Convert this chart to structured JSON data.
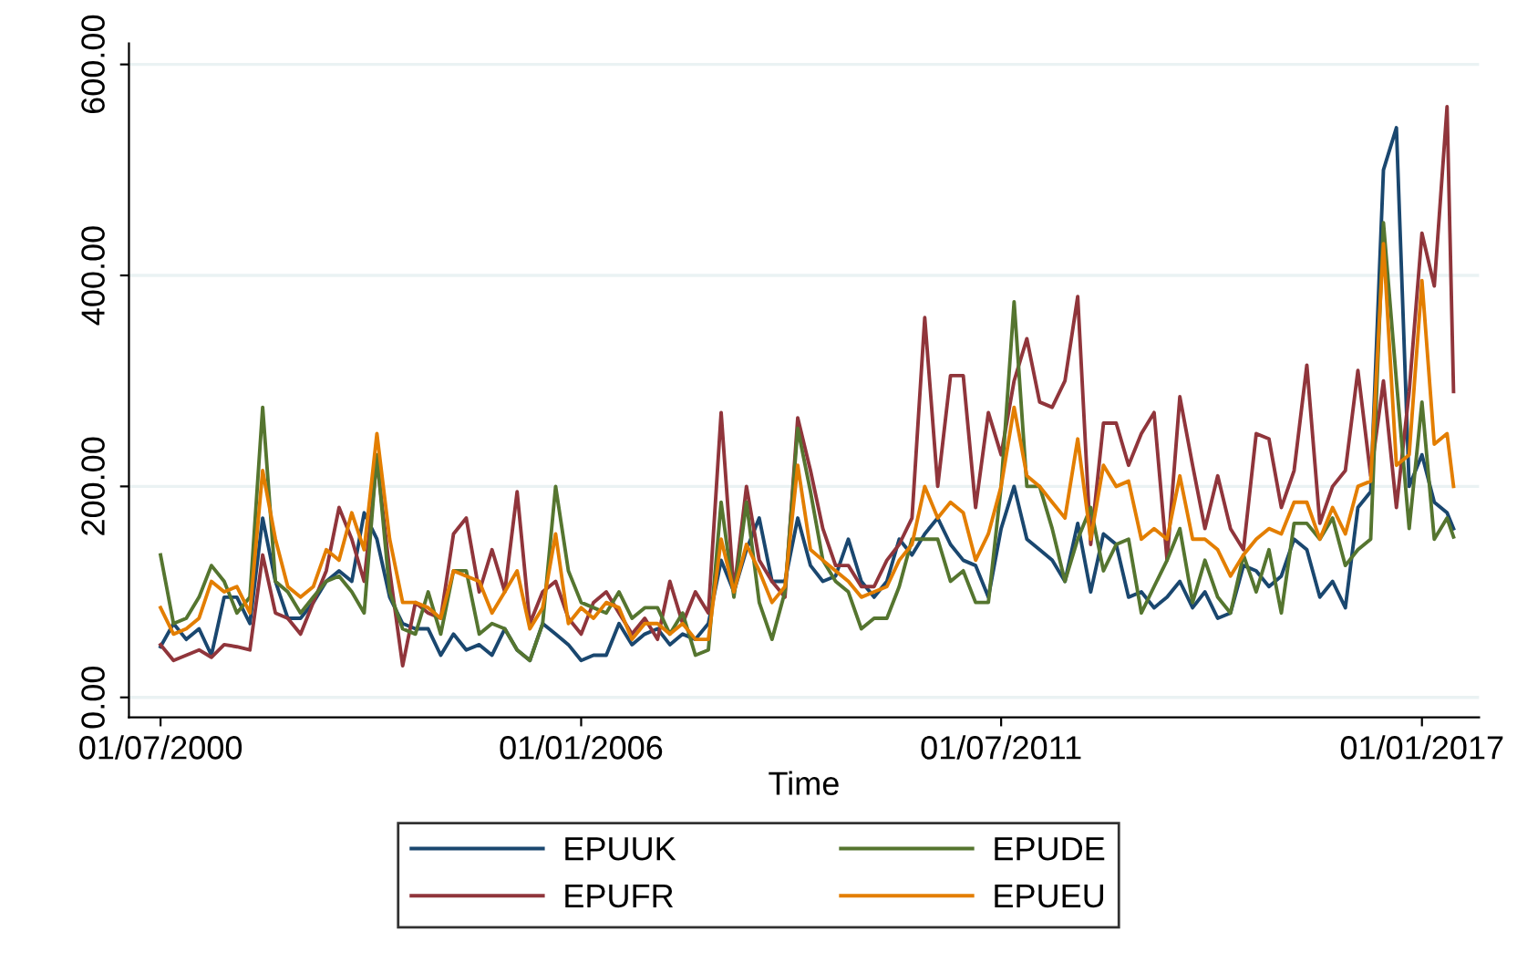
{
  "chart_data": {
    "type": "line",
    "xlabel": "Time",
    "x": [
      "2000-07",
      "2000-09",
      "2000-11",
      "2001-01",
      "2001-03",
      "2001-05",
      "2001-07",
      "2001-09",
      "2001-11",
      "2002-01",
      "2002-03",
      "2002-05",
      "2002-07",
      "2002-09",
      "2002-11",
      "2003-01",
      "2003-03",
      "2003-05",
      "2003-07",
      "2003-09",
      "2003-11",
      "2004-01",
      "2004-03",
      "2004-05",
      "2004-07",
      "2004-09",
      "2004-11",
      "2005-01",
      "2005-03",
      "2005-05",
      "2005-07",
      "2005-09",
      "2005-11",
      "2006-01",
      "2006-03",
      "2006-05",
      "2006-07",
      "2006-09",
      "2006-11",
      "2007-01",
      "2007-03",
      "2007-05",
      "2007-07",
      "2007-09",
      "2007-11",
      "2008-01",
      "2008-03",
      "2008-05",
      "2008-07",
      "2008-09",
      "2008-11",
      "2009-01",
      "2009-03",
      "2009-05",
      "2009-07",
      "2009-09",
      "2009-11",
      "2010-01",
      "2010-03",
      "2010-05",
      "2010-07",
      "2010-09",
      "2010-11",
      "2011-01",
      "2011-03",
      "2011-05",
      "2011-07",
      "2011-09",
      "2011-11",
      "2012-01",
      "2012-03",
      "2012-05",
      "2012-07",
      "2012-09",
      "2012-11",
      "2013-01",
      "2013-03",
      "2013-05",
      "2013-07",
      "2013-09",
      "2013-11",
      "2014-01",
      "2014-03",
      "2014-05",
      "2014-07",
      "2014-09",
      "2014-11",
      "2015-01",
      "2015-03",
      "2015-05",
      "2015-07",
      "2015-09",
      "2015-11",
      "2016-01",
      "2016-03",
      "2016-05",
      "2016-07",
      "2016-09",
      "2016-11",
      "2017-01",
      "2017-03",
      "2017-05",
      "2017-06"
    ],
    "series": [
      {
        "name": "EPUUK",
        "color": "#1a476f",
        "values": [
          48,
          70,
          55,
          65,
          40,
          95,
          95,
          70,
          170,
          110,
          75,
          75,
          90,
          110,
          120,
          110,
          175,
          150,
          95,
          70,
          65,
          65,
          40,
          60,
          45,
          50,
          40,
          65,
          45,
          35,
          70,
          60,
          50,
          35,
          40,
          40,
          70,
          50,
          60,
          65,
          50,
          60,
          55,
          70,
          130,
          100,
          140,
          170,
          110,
          110,
          170,
          125,
          110,
          115,
          150,
          110,
          95,
          110,
          150,
          135,
          155,
          170,
          145,
          130,
          125,
          95,
          160,
          200,
          150,
          140,
          130,
          110,
          165,
          100,
          155,
          145,
          95,
          100,
          85,
          95,
          110,
          85,
          100,
          75,
          80,
          125,
          120,
          105,
          115,
          150,
          140,
          95,
          110,
          85,
          180,
          195,
          500,
          540,
          200,
          230,
          185,
          175,
          160
        ]
      },
      {
        "name": "EPUFR",
        "color": "#90353b",
        "values": [
          50,
          35,
          40,
          45,
          38,
          50,
          48,
          45,
          135,
          80,
          75,
          60,
          90,
          120,
          180,
          150,
          110,
          225,
          120,
          30,
          90,
          80,
          75,
          155,
          170,
          100,
          140,
          100,
          195,
          70,
          100,
          110,
          75,
          60,
          90,
          100,
          80,
          60,
          75,
          55,
          110,
          70,
          100,
          80,
          270,
          100,
          200,
          130,
          110,
          95,
          265,
          215,
          160,
          125,
          125,
          105,
          105,
          130,
          145,
          170,
          360,
          200,
          305,
          305,
          180,
          270,
          230,
          300,
          340,
          280,
          275,
          300,
          380,
          145,
          260,
          260,
          220,
          250,
          270,
          130,
          285,
          220,
          160,
          210,
          160,
          140,
          250,
          245,
          180,
          215,
          315,
          165,
          200,
          215,
          310,
          210,
          300,
          180,
          290,
          440,
          390,
          560,
          290
        ]
      },
      {
        "name": "EPUDE",
        "color": "#55752f",
        "values": [
          135,
          70,
          75,
          95,
          125,
          110,
          80,
          95,
          275,
          110,
          100,
          80,
          95,
          110,
          115,
          100,
          80,
          230,
          100,
          65,
          60,
          100,
          60,
          120,
          120,
          60,
          70,
          65,
          45,
          35,
          70,
          200,
          120,
          90,
          85,
          80,
          100,
          75,
          85,
          85,
          60,
          80,
          40,
          45,
          185,
          95,
          185,
          90,
          55,
          100,
          255,
          195,
          130,
          110,
          100,
          65,
          75,
          75,
          105,
          150,
          150,
          150,
          110,
          120,
          90,
          90,
          200,
          375,
          200,
          200,
          160,
          110,
          150,
          180,
          120,
          145,
          150,
          80,
          105,
          130,
          160,
          90,
          130,
          95,
          80,
          135,
          100,
          140,
          80,
          165,
          165,
          150,
          170,
          125,
          140,
          150,
          450,
          300,
          160,
          280,
          150,
          170,
          152
        ]
      },
      {
        "name": "EPUEU",
        "color": "#e37e00",
        "values": [
          85,
          60,
          65,
          75,
          110,
          100,
          105,
          80,
          215,
          150,
          105,
          95,
          105,
          140,
          130,
          175,
          140,
          250,
          150,
          90,
          90,
          85,
          75,
          120,
          115,
          110,
          80,
          100,
          120,
          65,
          85,
          155,
          70,
          85,
          75,
          90,
          85,
          55,
          70,
          70,
          60,
          70,
          55,
          55,
          150,
          100,
          145,
          120,
          90,
          105,
          220,
          140,
          130,
          120,
          110,
          95,
          100,
          105,
          130,
          145,
          200,
          170,
          185,
          175,
          130,
          155,
          200,
          275,
          210,
          200,
          185,
          170,
          245,
          150,
          220,
          200,
          205,
          150,
          160,
          150,
          210,
          150,
          150,
          140,
          115,
          135,
          150,
          160,
          155,
          185,
          185,
          150,
          180,
          155,
          200,
          205,
          430,
          220,
          230,
          395,
          240,
          250,
          200
        ]
      }
    ],
    "xlim": [
      "2000-02",
      "2017-10"
    ],
    "xticks": [
      {
        "value": "2000-07-01",
        "label": "01/07/2000"
      },
      {
        "value": "2006-01-01",
        "label": "01/01/2006"
      },
      {
        "value": "2011-07-01",
        "label": "01/07/2011"
      },
      {
        "value": "2017-01-01",
        "label": "01/01/2017"
      }
    ],
    "ylim": [
      -19,
      620
    ],
    "yticks": [
      {
        "value": 0,
        "label": "0.00"
      },
      {
        "value": 200,
        "label": "200.00"
      },
      {
        "value": 400,
        "label": "400.00"
      },
      {
        "value": 600,
        "label": "600.00"
      }
    ],
    "grid": "y",
    "legend": "bottom",
    "marker": "none",
    "line_style": "solid"
  }
}
